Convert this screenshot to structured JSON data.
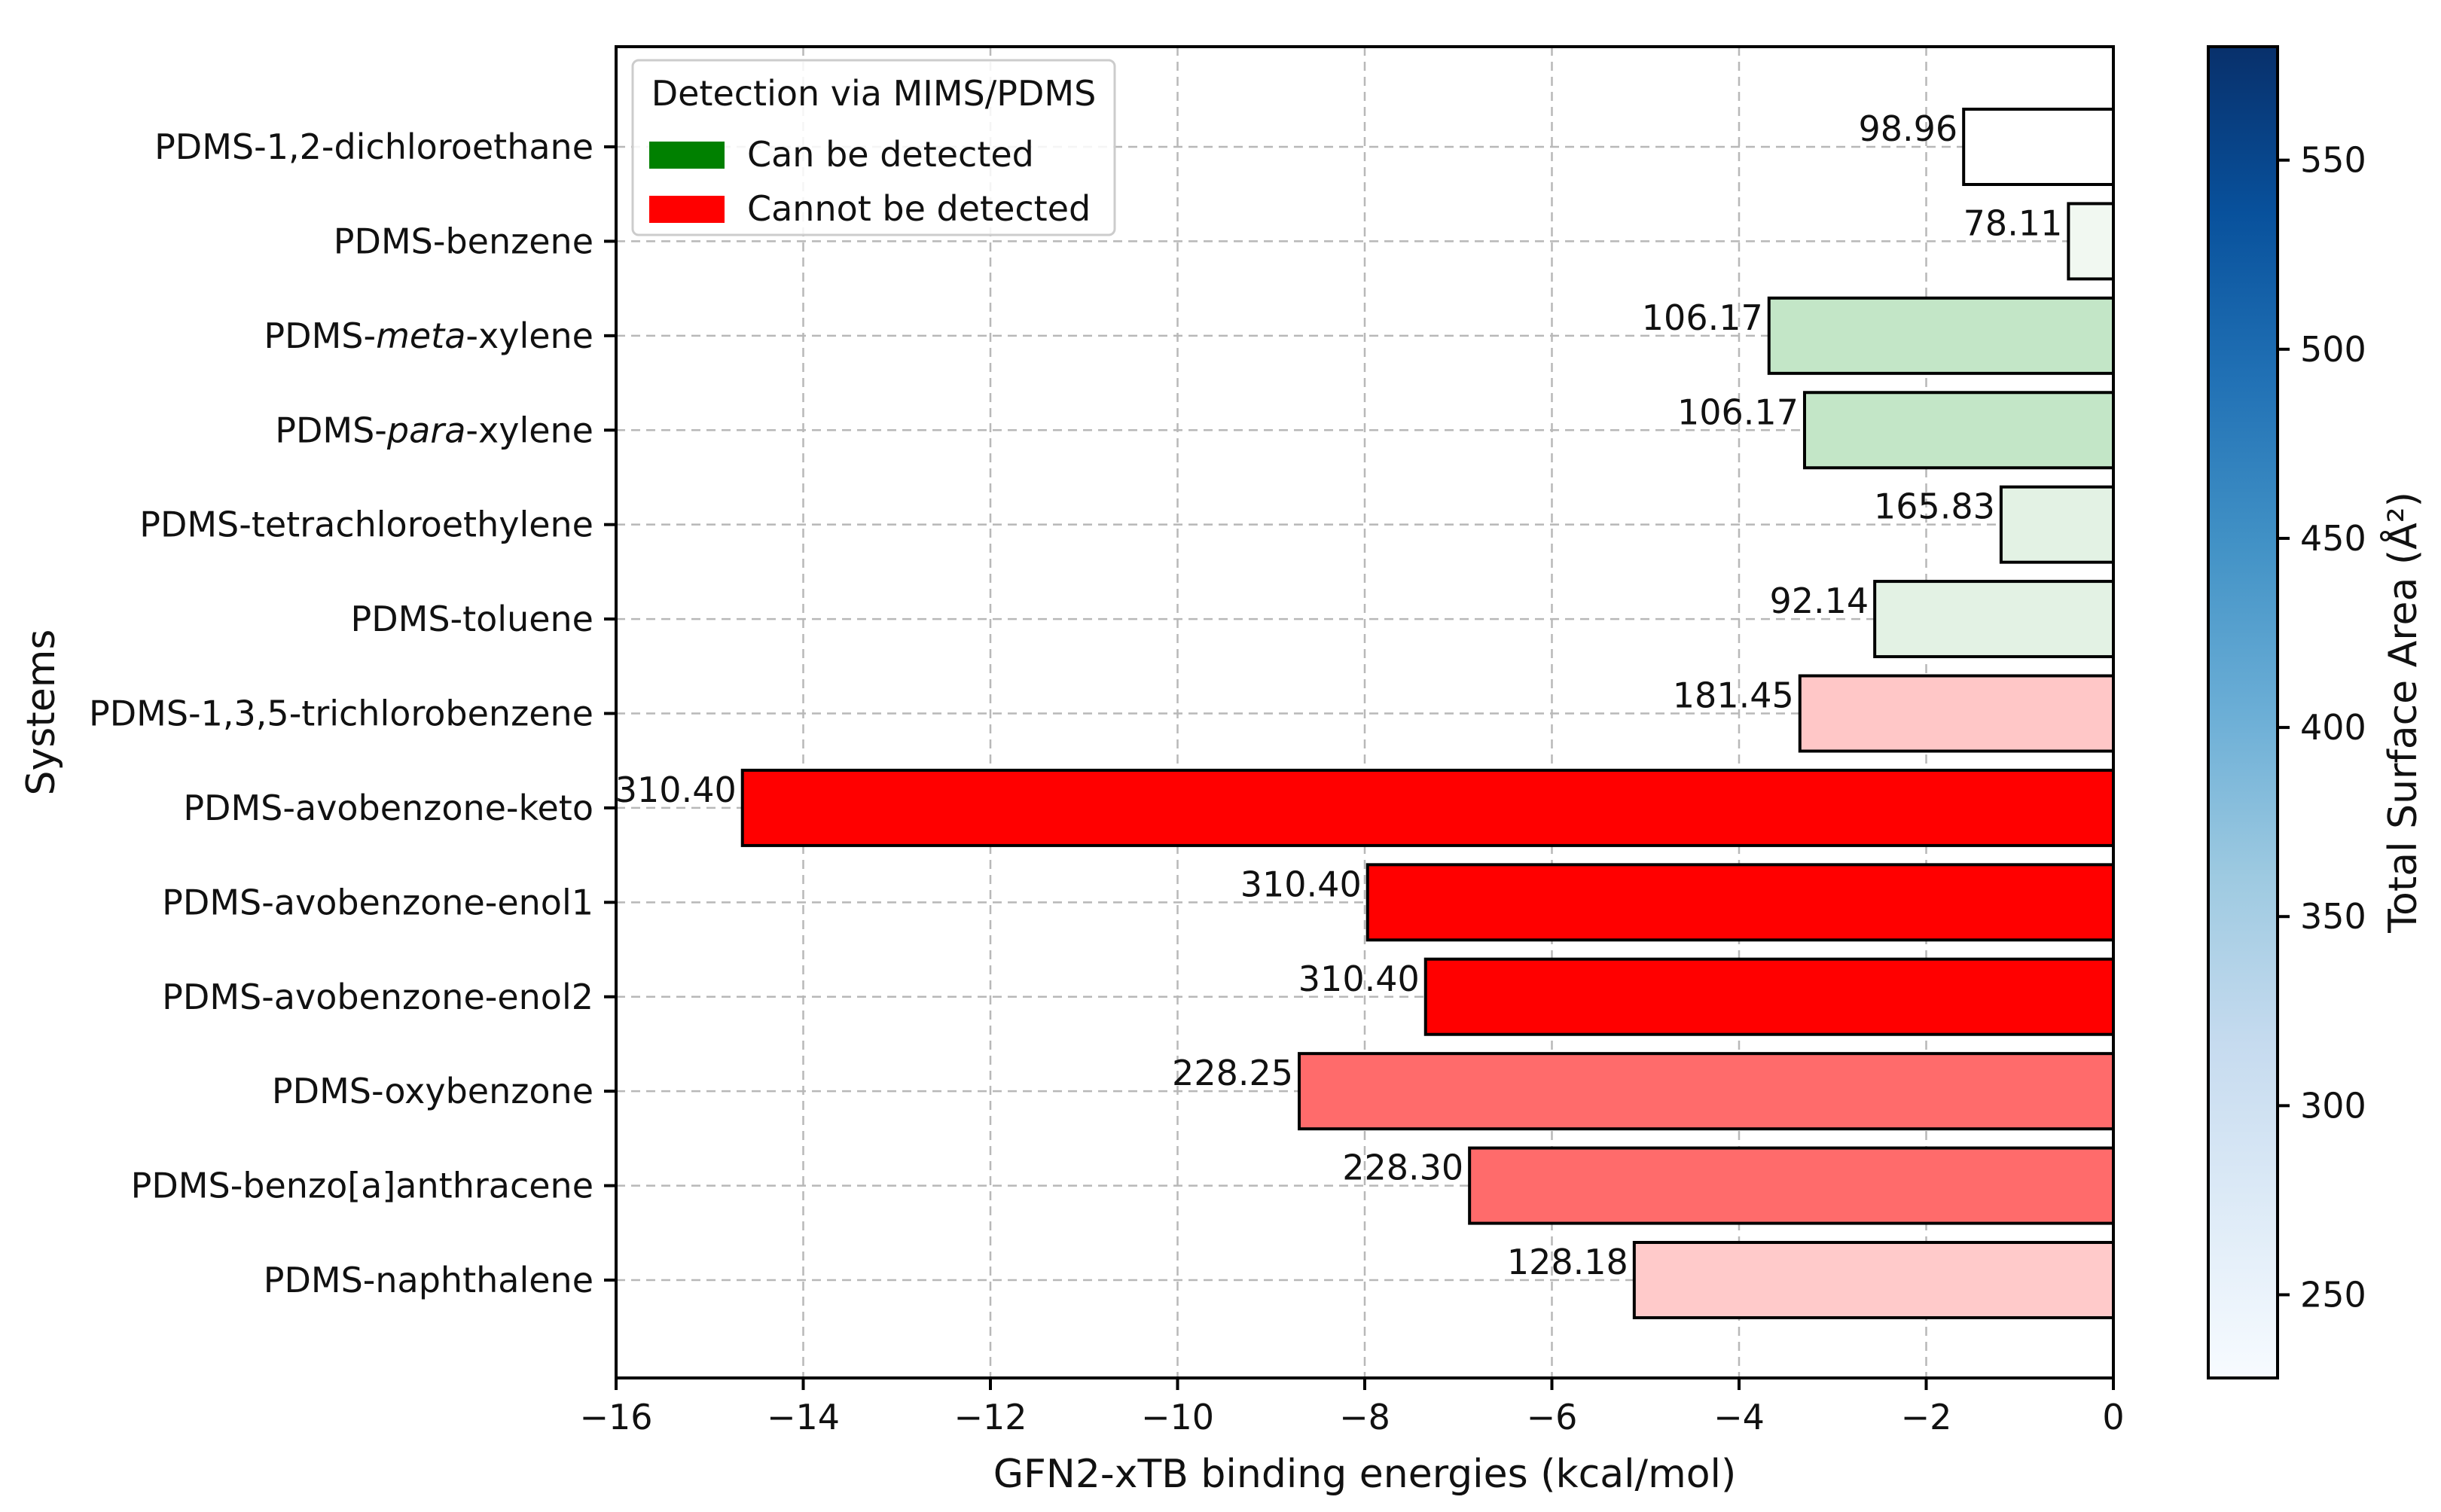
{
  "chart_data": {
    "type": "bar",
    "orientation": "horizontal",
    "xlabel": "GFN2-xTB binding energies (kcal/mol)",
    "ylabel": "Systems",
    "xlim": [
      -16,
      0
    ],
    "xticks": [
      -16,
      -14,
      -12,
      -10,
      -8,
      -6,
      -4,
      -2,
      0
    ],
    "grid": true,
    "categories": [
      [
        "PDMS-1,2-dichloroethane"
      ],
      [
        "PDMS-benzene"
      ],
      [
        "PDMS-",
        "meta",
        "-xylene"
      ],
      [
        "PDMS-",
        "para",
        "-xylene"
      ],
      [
        "PDMS-tetrachloroethylene"
      ],
      [
        "PDMS-toluene"
      ],
      [
        "PDMS-1,3,5-trichlorobenzene"
      ],
      [
        "PDMS-avobenzone-keto"
      ],
      [
        "PDMS-avobenzone-enol1"
      ],
      [
        "PDMS-avobenzone-enol2"
      ],
      [
        "PDMS-oxybenzone"
      ],
      [
        "PDMS-benzo[a]anthracene"
      ],
      [
        "PDMS-naphthalene"
      ]
    ],
    "values": [
      -1.6,
      -0.48,
      -3.68,
      -3.3,
      -1.2,
      -2.55,
      -3.35,
      -14.65,
      -7.97,
      -7.35,
      -8.7,
      -6.88,
      -5.12
    ],
    "bar_labels": [
      "98.96",
      "78.11",
      "106.17",
      "106.17",
      "165.83",
      "92.14",
      "181.45",
      "310.40",
      "310.40",
      "310.40",
      "228.25",
      "228.30",
      "128.18"
    ],
    "bar_colors": [
      "#ffffff",
      "#f1f8f1",
      "#c3e6c7",
      "#c3e6c7",
      "#e3f2e4",
      "#e3f2e4",
      "#ffc7c7",
      "#ff0000",
      "#ff0000",
      "#ff0000",
      "#ff6b6b",
      "#ff6b6b",
      "#ffcaca"
    ],
    "legend": {
      "title": "Detection via MIMS/PDMS",
      "placement": "top-left",
      "entries": [
        {
          "label": "Can be detected",
          "color": "#008000"
        },
        {
          "label": "Cannot be detected",
          "color": "#ff0000"
        }
      ]
    },
    "colorbar": {
      "label": "Total Surface Area (Å²)",
      "range": [
        228,
        580
      ],
      "ticks": [
        250,
        300,
        350,
        400,
        450,
        500,
        550
      ],
      "colors": [
        "#f7fbff",
        "#deebf7",
        "#c6dbef",
        "#9ecae1",
        "#6baed6",
        "#4292c6",
        "#2171b5",
        "#08519c",
        "#08306b"
      ]
    }
  }
}
